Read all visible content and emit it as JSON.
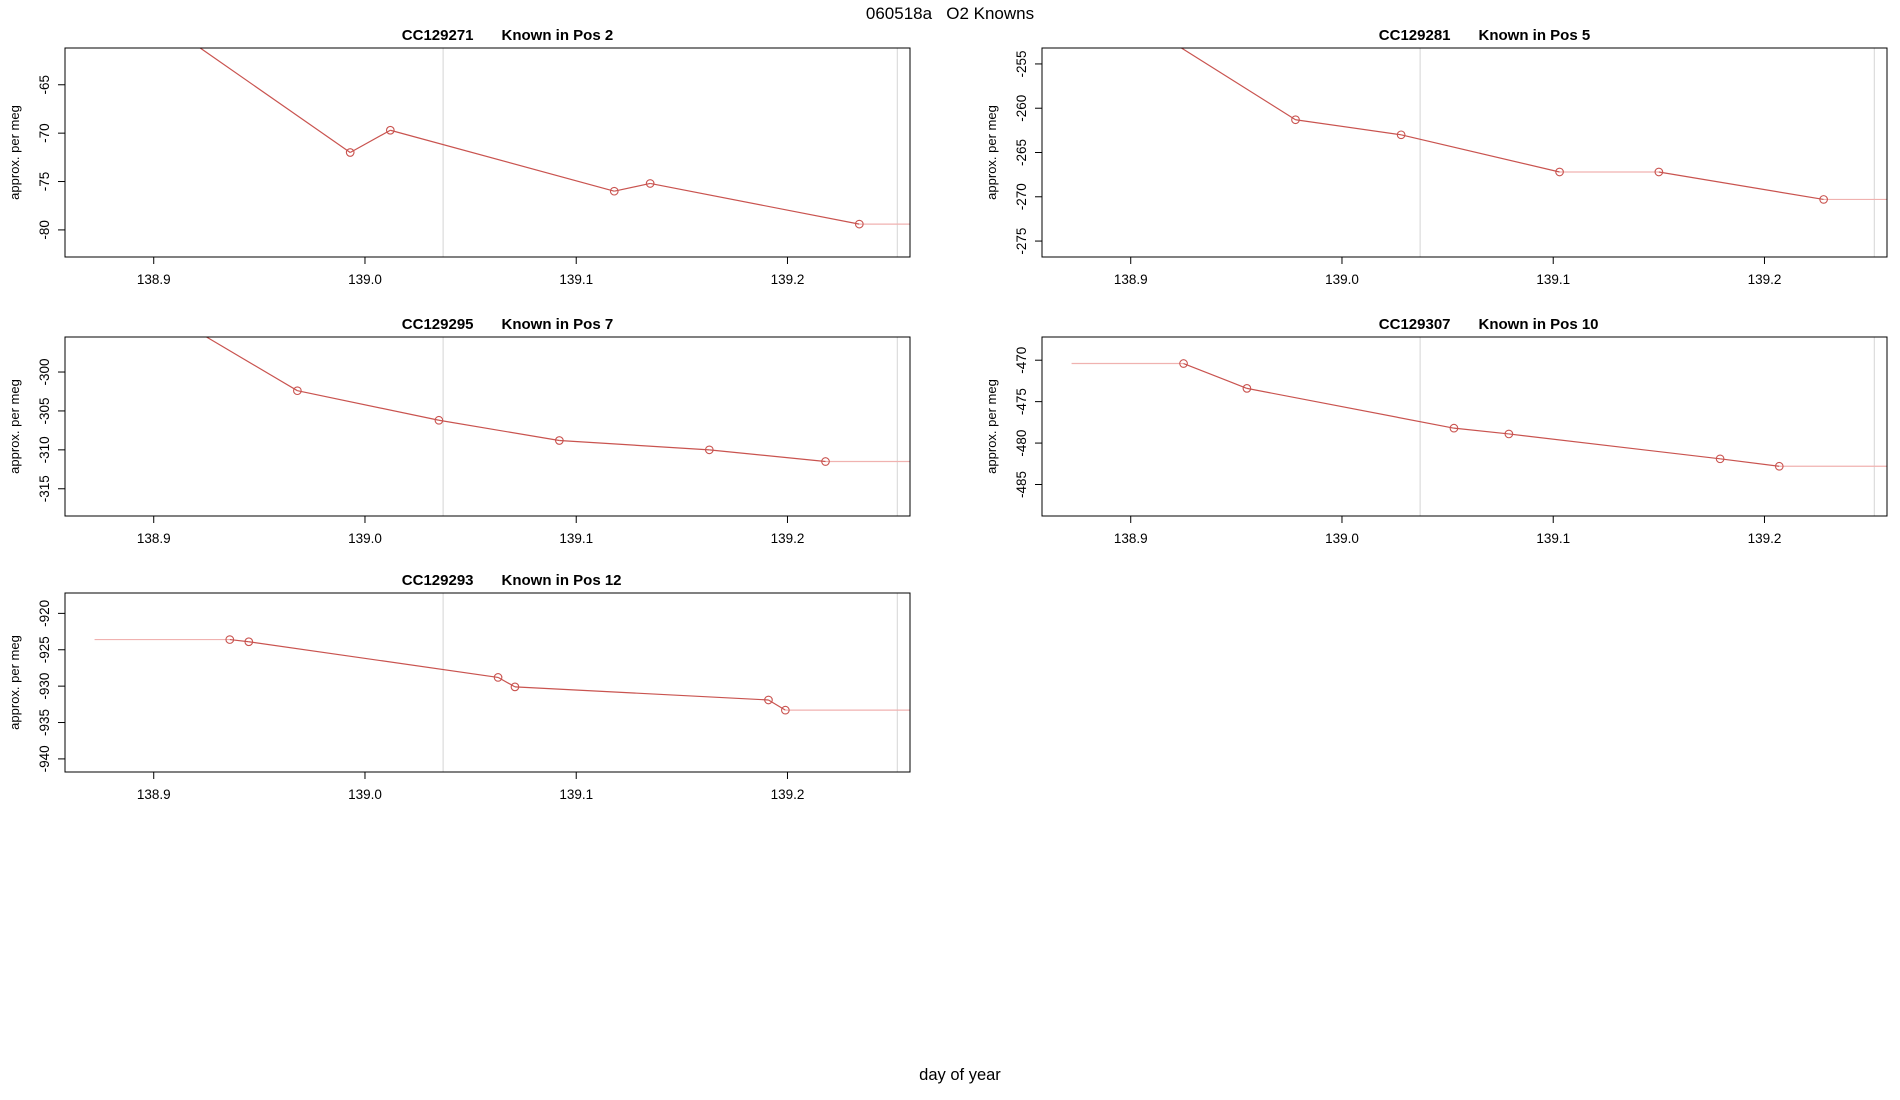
{
  "page": {
    "main_title": "060518a   O2 Knowns",
    "x_axis_label": "day of year"
  },
  "colors": {
    "line": "#C9534F",
    "flat_line": "#F0B2B0",
    "vline": "#DCDCDC",
    "axis": "#000000",
    "background": "#FFFFFF"
  },
  "chart_data": [
    {
      "type": "line",
      "id": "CC129271",
      "pos_label": "Known in Pos 2",
      "ylabel": "approx. per meg",
      "slot": [
        0,
        0
      ],
      "xlim": [
        138.858,
        139.258
      ],
      "ylim": [
        -82.8,
        -61.2
      ],
      "xticks": [
        "138.9",
        "139.0",
        "139.1",
        "139.2"
      ],
      "yticks": [
        -65,
        -70,
        -75,
        -80
      ],
      "vlines": [
        139.037,
        139.252
      ],
      "path": [
        [
          138.922,
          -61.2
        ],
        [
          138.993,
          -72.0
        ],
        [
          139.012,
          -69.7
        ],
        [
          139.118,
          -76.0
        ],
        [
          139.135,
          -75.2
        ],
        [
          139.234,
          -79.4
        ],
        [
          139.258,
          -79.4
        ]
      ],
      "markers": [
        [
          138.993,
          -72.0
        ],
        [
          139.012,
          -69.7
        ],
        [
          139.118,
          -76.0
        ],
        [
          139.135,
          -75.2
        ],
        [
          139.234,
          -79.4
        ]
      ]
    },
    {
      "type": "line",
      "id": "CC129281",
      "pos_label": "Known in Pos 5",
      "ylabel": "approx. per meg",
      "slot": [
        0,
        1
      ],
      "xlim": [
        138.858,
        139.258
      ],
      "ylim": [
        -276.8,
        -253.2
      ],
      "xticks": [
        "138.9",
        "139.0",
        "139.1",
        "139.2"
      ],
      "yticks": [
        -255,
        -260,
        -265,
        -270,
        -275
      ],
      "vlines": [
        139.037,
        139.252
      ],
      "path": [
        [
          138.924,
          -253.2
        ],
        [
          138.978,
          -261.3
        ],
        [
          139.028,
          -263.0
        ],
        [
          139.103,
          -267.2
        ],
        [
          139.15,
          -267.2
        ],
        [
          139.228,
          -270.3
        ],
        [
          139.258,
          -270.3
        ]
      ],
      "markers": [
        [
          138.978,
          -261.3
        ],
        [
          139.028,
          -263.0
        ],
        [
          139.103,
          -267.2
        ],
        [
          139.15,
          -267.2
        ],
        [
          139.228,
          -270.3
        ]
      ]
    },
    {
      "type": "line",
      "id": "CC129295",
      "pos_label": "Known in Pos 7",
      "ylabel": "approx. per meg",
      "slot": [
        1,
        0
      ],
      "xlim": [
        138.858,
        139.258
      ],
      "ylim": [
        -318.5,
        -295.5
      ],
      "xticks": [
        "138.9",
        "139.0",
        "139.1",
        "139.2"
      ],
      "yticks": [
        -300,
        -305,
        -310,
        -315
      ],
      "vlines": [
        139.037,
        139.252
      ],
      "path": [
        [
          138.925,
          -295.5
        ],
        [
          138.968,
          -302.4
        ],
        [
          139.035,
          -306.2
        ],
        [
          139.092,
          -308.8
        ],
        [
          139.163,
          -310.0
        ],
        [
          139.218,
          -311.5
        ],
        [
          139.258,
          -311.5
        ]
      ],
      "markers": [
        [
          138.968,
          -302.4
        ],
        [
          139.035,
          -306.2
        ],
        [
          139.092,
          -308.8
        ],
        [
          139.163,
          -310.0
        ],
        [
          139.218,
          -311.5
        ]
      ]
    },
    {
      "type": "line",
      "id": "CC129307",
      "pos_label": "Known in Pos 10",
      "ylabel": "approx. per meg",
      "slot": [
        1,
        1
      ],
      "xlim": [
        138.858,
        139.258
      ],
      "ylim": [
        -488.8,
        -467.2
      ],
      "xticks": [
        "138.9",
        "139.0",
        "139.1",
        "139.2"
      ],
      "yticks": [
        -470,
        -475,
        -480,
        -485
      ],
      "vlines": [
        139.037,
        139.252
      ],
      "path": [
        [
          138.872,
          -470.4
        ],
        [
          138.925,
          -470.4
        ],
        [
          138.955,
          -473.4
        ],
        [
          139.053,
          -478.2
        ],
        [
          139.079,
          -478.9
        ],
        [
          139.179,
          -481.9
        ],
        [
          139.207,
          -482.8
        ],
        [
          139.258,
          -482.8
        ]
      ],
      "markers": [
        [
          138.925,
          -470.4
        ],
        [
          138.955,
          -473.4
        ],
        [
          139.053,
          -478.2
        ],
        [
          139.079,
          -478.9
        ],
        [
          139.179,
          -481.9
        ],
        [
          139.207,
          -482.8
        ]
      ]
    },
    {
      "type": "line",
      "id": "CC129293",
      "pos_label": "Known in Pos 12",
      "ylabel": "approx. per meg",
      "slot": [
        2,
        0
      ],
      "xlim": [
        138.858,
        139.258
      ],
      "ylim": [
        -941.8,
        -917.2
      ],
      "xticks": [
        "138.9",
        "139.0",
        "139.1",
        "139.2"
      ],
      "yticks": [
        -920,
        -925,
        -930,
        -935,
        -940
      ],
      "vlines": [
        139.037,
        139.252
      ],
      "path": [
        [
          138.872,
          -923.6
        ],
        [
          138.936,
          -923.6
        ],
        [
          138.945,
          -923.9
        ],
        [
          139.063,
          -928.8
        ],
        [
          139.071,
          -930.1
        ],
        [
          139.191,
          -931.9
        ],
        [
          139.199,
          -933.3
        ],
        [
          139.258,
          -933.3
        ]
      ],
      "markers": [
        [
          138.936,
          -923.6
        ],
        [
          138.945,
          -923.9
        ],
        [
          139.063,
          -928.8
        ],
        [
          139.071,
          -930.1
        ],
        [
          139.191,
          -931.9
        ],
        [
          139.199,
          -933.3
        ]
      ]
    }
  ]
}
